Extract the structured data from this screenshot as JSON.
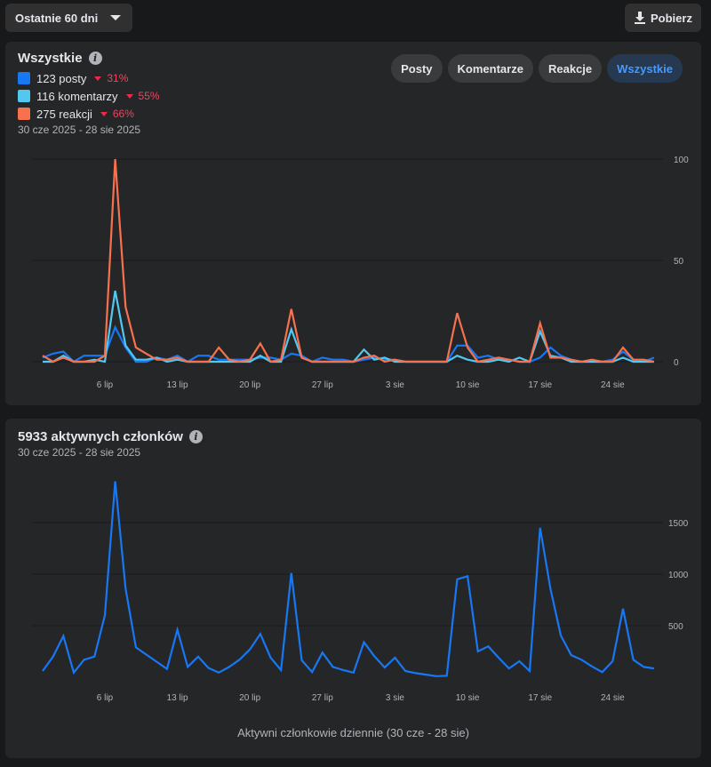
{
  "toolbar": {
    "range_label": "Ostatnie 60 dni",
    "download_label": "Pobierz"
  },
  "engagement": {
    "title": "Wszystkie",
    "legend": [
      {
        "label": "123 posty",
        "change": "31%",
        "color": "#1877f2"
      },
      {
        "label": "116 komentarzy",
        "change": "55%",
        "color": "#50c8f0"
      },
      {
        "label": "275 reakcji",
        "change": "66%",
        "color": "#f7714f"
      }
    ],
    "date_range": "30 cze 2025 - 28 sie 2025",
    "filters": [
      {
        "label": "Posty",
        "active": false
      },
      {
        "label": "Komentarze",
        "active": false
      },
      {
        "label": "Reakcje",
        "active": false
      },
      {
        "label": "Wszystkie",
        "active": true
      }
    ]
  },
  "members": {
    "title": "5933 aktywnych członków",
    "date_range": "30 cze 2025 - 28 sie 2025",
    "footer": "Aktywni członkowie dziennie (30 cze - 28 sie)"
  },
  "chart_data": [
    {
      "type": "line",
      "title": "Wszystkie",
      "days": 60,
      "xtick_labels": [
        {
          "day": 6,
          "label": "6 lip"
        },
        {
          "day": 13,
          "label": "13 lip"
        },
        {
          "day": 20,
          "label": "20 lip"
        },
        {
          "day": 27,
          "label": "27 lip"
        },
        {
          "day": 34,
          "label": "3 sie"
        },
        {
          "day": 41,
          "label": "10 sie"
        },
        {
          "day": 48,
          "label": "17 sie"
        },
        {
          "day": 55,
          "label": "24 sie"
        }
      ],
      "yticks": [
        0,
        50,
        100
      ],
      "ylim": [
        0,
        100
      ],
      "grid": true,
      "series": [
        {
          "name": "posty",
          "color": "#1877f2",
          "values": [
            2,
            4,
            5,
            0,
            3,
            3,
            3,
            17,
            7,
            0,
            0,
            2,
            1,
            3,
            0,
            3,
            3,
            1,
            1,
            1,
            1,
            2,
            2,
            1,
            4,
            3,
            0,
            2,
            1,
            1,
            0,
            1,
            2,
            1,
            1,
            0,
            0,
            0,
            0,
            0,
            8,
            8,
            2,
            3,
            1,
            1,
            0,
            0,
            2,
            7,
            3,
            1,
            0,
            0,
            0,
            1,
            5,
            1,
            0,
            2
          ]
        },
        {
          "name": "komentarze",
          "color": "#50c8f0",
          "values": [
            0,
            0,
            3,
            0,
            0,
            1,
            0,
            35,
            8,
            1,
            1,
            2,
            0,
            1,
            0,
            0,
            0,
            0,
            0,
            0,
            0,
            3,
            0,
            0,
            16,
            2,
            0,
            0,
            0,
            0,
            0,
            6,
            1,
            2,
            0,
            0,
            0,
            0,
            0,
            0,
            3,
            1,
            0,
            0,
            1,
            0,
            2,
            0,
            15,
            3,
            2,
            0,
            0,
            0,
            0,
            0,
            2,
            0,
            0,
            0
          ]
        },
        {
          "name": "reakcje",
          "color": "#f7714f",
          "values": [
            3,
            0,
            2,
            0,
            0,
            0,
            3,
            100,
            27,
            7,
            4,
            1,
            1,
            2,
            0,
            0,
            0,
            7,
            1,
            0,
            1,
            9,
            0,
            1,
            26,
            2,
            0,
            0,
            0,
            0,
            0,
            2,
            3,
            0,
            1,
            0,
            0,
            0,
            0,
            0,
            24,
            7,
            0,
            1,
            2,
            1,
            0,
            0,
            19,
            2,
            2,
            1,
            0,
            1,
            0,
            0,
            7,
            1,
            1,
            0
          ]
        }
      ]
    },
    {
      "type": "line",
      "title": "5933 aktywnych członków",
      "xlabel": "Aktywni członkowie dziennie (30 cze - 28 sie)",
      "days": 60,
      "xtick_labels": [
        {
          "day": 6,
          "label": "6 lip"
        },
        {
          "day": 13,
          "label": "13 lip"
        },
        {
          "day": 20,
          "label": "20 lip"
        },
        {
          "day": 27,
          "label": "27 lip"
        },
        {
          "day": 34,
          "label": "3 sie"
        },
        {
          "day": 41,
          "label": "10 sie"
        },
        {
          "day": 48,
          "label": "17 sie"
        },
        {
          "day": 55,
          "label": "24 sie"
        }
      ],
      "yticks": [
        500,
        1000,
        1500
      ],
      "ylim": [
        0,
        2000
      ],
      "grid": true,
      "series": [
        {
          "name": "aktywni członkowie",
          "color": "#1877f2",
          "values": [
            60,
            200,
            400,
            45,
            170,
            200,
            600,
            1900,
            860,
            290,
            220,
            150,
            80,
            460,
            100,
            200,
            90,
            45,
            100,
            170,
            270,
            420,
            190,
            70,
            1010,
            165,
            50,
            240,
            100,
            70,
            45,
            340,
            205,
            95,
            190,
            60,
            40,
            25,
            10,
            15,
            950,
            980,
            250,
            300,
            190,
            85,
            155,
            60,
            1450,
            860,
            405,
            215,
            170,
            105,
            50,
            155,
            665,
            170,
            100,
            85
          ]
        }
      ]
    }
  ]
}
